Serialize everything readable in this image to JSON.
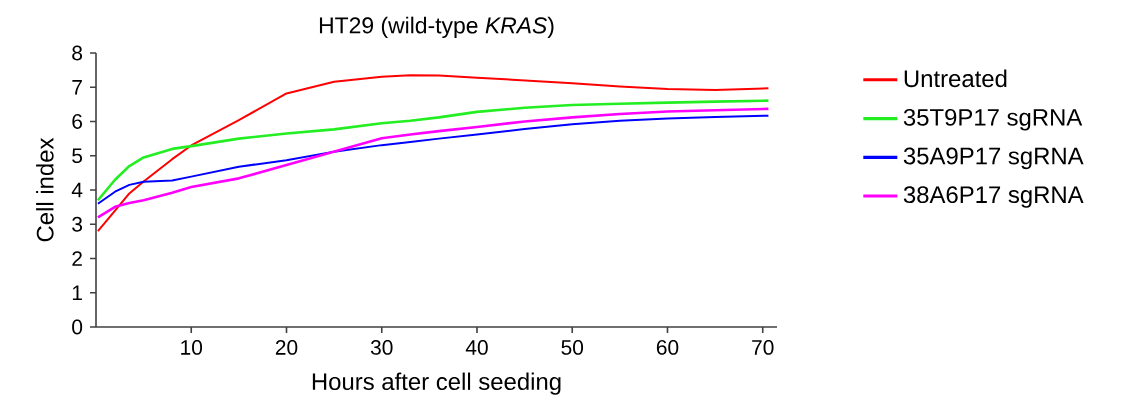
{
  "chart_data": {
    "type": "line",
    "title": "HT29 (wild-type *KRAS*)",
    "xlabel": "Hours after cell seeding",
    "ylabel": "Cell index",
    "xlim": [
      0,
      71.5
    ],
    "ylim": [
      0,
      8
    ],
    "xticks": [
      10,
      20,
      30,
      40,
      50,
      60,
      70
    ],
    "yticks": [
      0,
      1,
      2,
      3,
      4,
      5,
      6,
      7,
      8
    ],
    "grid": false,
    "legend": "right",
    "line_style": "solid",
    "x": [
      0.2,
      2,
      3.5,
      5,
      8,
      10,
      15,
      20,
      25,
      30,
      33,
      36,
      40,
      45,
      50,
      55,
      60,
      65,
      70.6
    ],
    "series": [
      {
        "name": "Untreated",
        "color": "#ff0000",
        "values": [
          2.8,
          3.4,
          3.9,
          4.25,
          4.9,
          5.3,
          6.04,
          6.82,
          7.16,
          7.31,
          7.35,
          7.34,
          7.28,
          7.2,
          7.12,
          7.02,
          6.95,
          6.92,
          6.97
        ]
      },
      {
        "name": "35T9P17 sgRNA",
        "color": "#22ee22",
        "values": [
          3.7,
          4.3,
          4.7,
          4.95,
          5.2,
          5.28,
          5.5,
          5.65,
          5.77,
          5.95,
          6.02,
          6.12,
          6.28,
          6.4,
          6.48,
          6.52,
          6.55,
          6.58,
          6.61
        ]
      },
      {
        "name": "35A9P17 sgRNA",
        "color": "#0000ff",
        "values": [
          3.6,
          3.95,
          4.15,
          4.24,
          4.28,
          4.39,
          4.68,
          4.87,
          5.12,
          5.31,
          5.4,
          5.5,
          5.62,
          5.78,
          5.92,
          6.02,
          6.09,
          6.13,
          6.17
        ]
      },
      {
        "name": "38A6P17 sgRNA",
        "color": "#ff00ff",
        "values": [
          3.2,
          3.51,
          3.62,
          3.7,
          3.92,
          4.09,
          4.34,
          4.73,
          5.12,
          5.51,
          5.62,
          5.72,
          5.84,
          6.0,
          6.12,
          6.22,
          6.29,
          6.33,
          6.37
        ]
      }
    ]
  }
}
